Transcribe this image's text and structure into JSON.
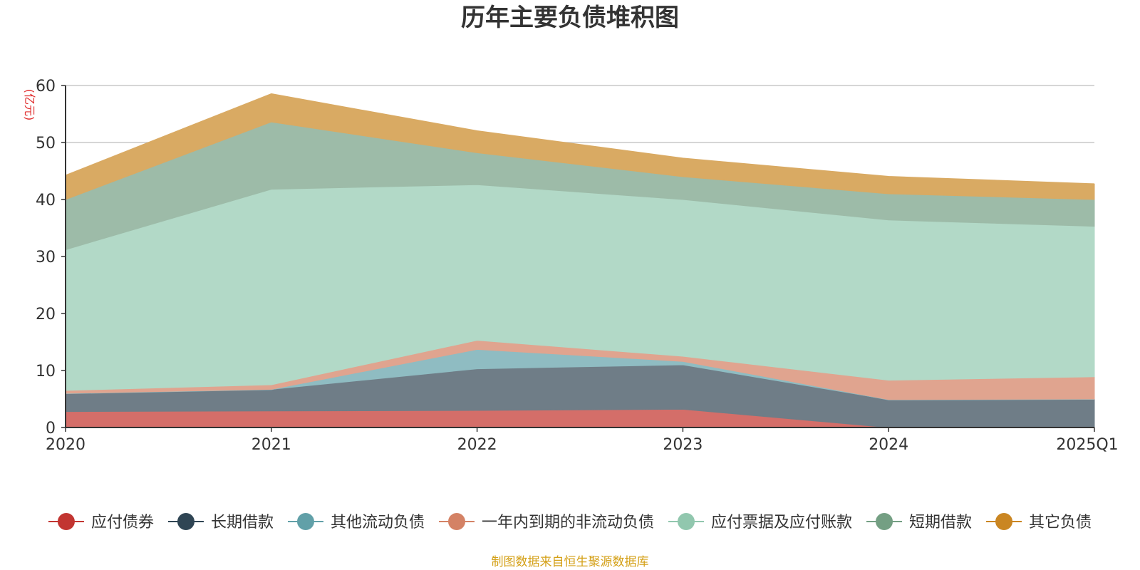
{
  "chart_data": {
    "type": "area",
    "stacked": true,
    "title": "历年主要负债堆积图",
    "unit_label": "(亿元)",
    "x": [
      "2020",
      "2021",
      "2022",
      "2023",
      "2024",
      "2025Q1"
    ],
    "ylim": [
      0,
      60
    ],
    "yticks": [
      "0",
      "10",
      "20",
      "30",
      "40",
      "50",
      "60"
    ],
    "grid": true,
    "legend_position": "bottom",
    "series": [
      {
        "name": "应付债券",
        "color": "#c23531",
        "fill": "#d46e69",
        "values": [
          2.8,
          2.9,
          3.0,
          3.2,
          0.0,
          0.0
        ]
      },
      {
        "name": "长期借款",
        "color": "#2f4554",
        "fill": "#6f7d87",
        "values": [
          3.2,
          3.8,
          7.3,
          7.8,
          4.9,
          5.0
        ]
      },
      {
        "name": "其他流动负债",
        "color": "#61a0a8",
        "fill": "#8fbcc2",
        "values": [
          0.0,
          0.0,
          3.4,
          0.6,
          0.0,
          0.0
        ]
      },
      {
        "name": "一年内到期的非流动负债",
        "color": "#d48265",
        "fill": "#e0a48f",
        "values": [
          0.5,
          0.8,
          1.6,
          0.9,
          3.4,
          3.9
        ]
      },
      {
        "name": "应付票据及应付账款",
        "color": "#91c7ae",
        "fill": "#b2d9c7",
        "values": [
          24.7,
          34.3,
          27.3,
          27.5,
          28.1,
          26.4
        ]
      },
      {
        "name": "短期借款",
        "color": "#749f83",
        "fill": "#9dbba8",
        "values": [
          8.8,
          11.8,
          5.6,
          4.0,
          4.6,
          4.7
        ]
      },
      {
        "name": "其它负债",
        "color": "#ca8622",
        "fill": "#d9aa63",
        "values": [
          4.2,
          4.9,
          3.8,
          3.2,
          3.0,
          2.7
        ]
      }
    ],
    "source_note": "制图数据来自恒生聚源数据库"
  }
}
